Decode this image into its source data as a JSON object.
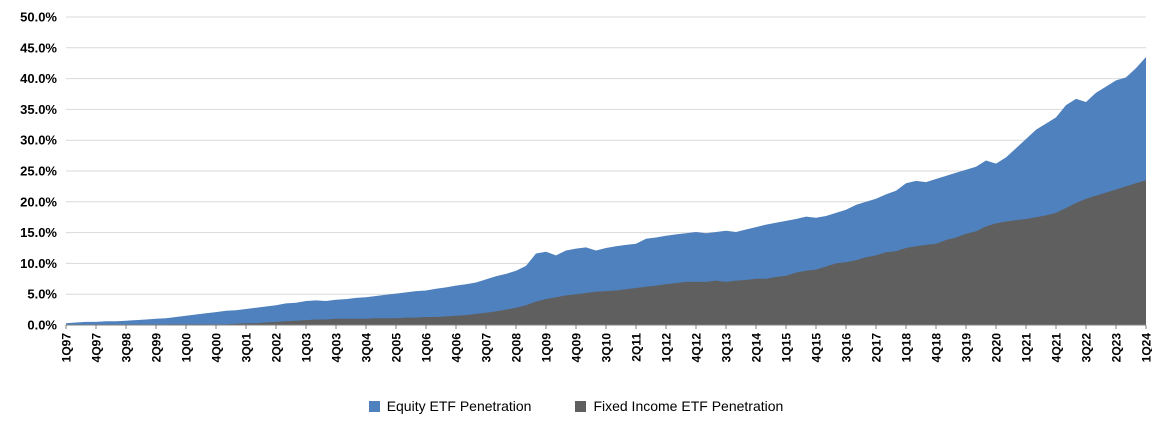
{
  "chart_data": {
    "type": "area",
    "title": "",
    "xlabel": "",
    "ylabel": "",
    "ylim": [
      0,
      50
    ],
    "y_tick_step": 5,
    "y_tick_labels": [
      "0.0%",
      "5.0%",
      "10.0%",
      "15.0%",
      "20.0%",
      "25.0%",
      "30.0%",
      "35.0%",
      "40.0%",
      "45.0%",
      "50.0%"
    ],
    "x_labels": [
      "1Q97",
      "4Q97",
      "3Q98",
      "2Q99",
      "1Q00",
      "4Q00",
      "3Q01",
      "2Q02",
      "1Q03",
      "4Q03",
      "3Q04",
      "2Q05",
      "1Q06",
      "4Q06",
      "3Q07",
      "2Q08",
      "1Q09",
      "4Q09",
      "3Q10",
      "2Q11",
      "1Q12",
      "4Q12",
      "3Q13",
      "2Q14",
      "1Q15",
      "4Q15",
      "3Q16",
      "2Q17",
      "1Q18",
      "4Q18",
      "3Q19",
      "2Q20",
      "1Q21",
      "4Q21",
      "3Q22",
      "2Q23",
      "1Q24"
    ],
    "x_label_interval": 3,
    "grid": true,
    "legend_position": "bottom",
    "series": [
      {
        "name": "Equity ETF Penetration",
        "color": "#4e81bd",
        "values": [
          0.3,
          0.4,
          0.5,
          0.5,
          0.6,
          0.6,
          0.7,
          0.8,
          0.9,
          1.0,
          1.1,
          1.3,
          1.5,
          1.7,
          1.9,
          2.1,
          2.3,
          2.4,
          2.6,
          2.8,
          3.0,
          3.2,
          3.5,
          3.6,
          3.9,
          4.0,
          3.9,
          4.1,
          4.2,
          4.4,
          4.5,
          4.7,
          4.9,
          5.1,
          5.3,
          5.5,
          5.6,
          5.9,
          6.1,
          6.4,
          6.6,
          6.9,
          7.4,
          7.9,
          8.3,
          8.8,
          9.6,
          11.6,
          11.9,
          11.3,
          12.1,
          12.4,
          12.6,
          12.1,
          12.5,
          12.8,
          13.0,
          13.2,
          14.0,
          14.2,
          14.5,
          14.7,
          14.9,
          15.1,
          14.9,
          15.1,
          15.3,
          15.1,
          15.5,
          15.9,
          16.3,
          16.6,
          16.9,
          17.2,
          17.6,
          17.4,
          17.7,
          18.2,
          18.7,
          19.5,
          20.0,
          20.5,
          21.2,
          21.8,
          23.0,
          23.4,
          23.2,
          23.7,
          24.2,
          24.7,
          25.2,
          25.7,
          26.7,
          26.2,
          27.2,
          28.7,
          30.2,
          31.7,
          32.7,
          33.7,
          35.7,
          36.7,
          36.2,
          37.7,
          38.7,
          39.7,
          40.2,
          41.7,
          43.5
        ]
      },
      {
        "name": "Fixed Income ETF Penetration",
        "color": "#5f5f5f",
        "values": [
          0.0,
          0.0,
          0.0,
          0.0,
          0.0,
          0.0,
          0.0,
          0.0,
          0.0,
          0.0,
          0.1,
          0.1,
          0.1,
          0.1,
          0.1,
          0.1,
          0.1,
          0.2,
          0.3,
          0.3,
          0.4,
          0.5,
          0.6,
          0.7,
          0.8,
          0.9,
          0.9,
          1.0,
          1.0,
          1.0,
          1.0,
          1.1,
          1.1,
          1.1,
          1.2,
          1.2,
          1.3,
          1.3,
          1.4,
          1.5,
          1.6,
          1.8,
          2.0,
          2.2,
          2.5,
          2.8,
          3.2,
          3.8,
          4.2,
          4.5,
          4.8,
          5.0,
          5.2,
          5.4,
          5.5,
          5.6,
          5.8,
          6.0,
          6.2,
          6.4,
          6.6,
          6.8,
          7.0,
          7.0,
          7.0,
          7.2,
          7.0,
          7.2,
          7.3,
          7.5,
          7.5,
          7.8,
          8.0,
          8.5,
          8.8,
          9.0,
          9.5,
          10.0,
          10.2,
          10.5,
          11.0,
          11.3,
          11.8,
          12.0,
          12.5,
          12.8,
          13.0,
          13.2,
          13.8,
          14.2,
          14.8,
          15.2,
          16.0,
          16.5,
          16.8,
          17.0,
          17.2,
          17.5,
          17.8,
          18.2,
          19.0,
          19.8,
          20.5,
          21.0,
          21.5,
          22.0,
          22.5,
          23.0,
          23.5
        ]
      }
    ],
    "colors": {
      "grid": "#d9d9d9",
      "axis": "#808080",
      "text": "#000000",
      "background": "#ffffff"
    }
  }
}
